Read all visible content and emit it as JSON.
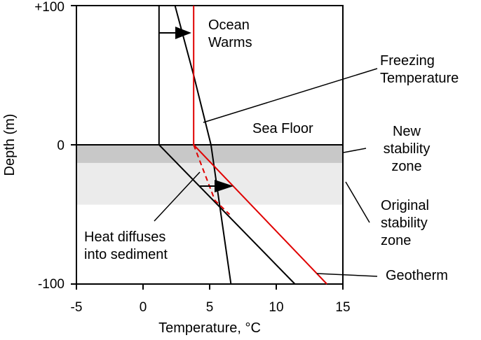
{
  "axes": {
    "xlabel": "Temperature, °C",
    "ylabel": "Depth (m)",
    "xticks": [
      "-5",
      "0",
      "5",
      "10",
      "15"
    ],
    "yticks": [
      "+100",
      "0",
      "-100"
    ]
  },
  "annotations": {
    "ocean_warms": [
      "Ocean",
      "Warms"
    ],
    "freezing": [
      "Freezing",
      "Temperature"
    ],
    "sea_floor": "Sea Floor",
    "new_zone": [
      "New",
      "stability",
      "zone"
    ],
    "original_zone": [
      "Original",
      "stability",
      "zone"
    ],
    "heat": [
      "Heat diffuses",
      "into sediment"
    ],
    "geotherm": "Geotherm"
  },
  "colors": {
    "geotherm_new": "#e00000",
    "new_zone_fill": "#c8c8c8",
    "original_zone_fill": "#ebebeb",
    "lines": "#000000"
  },
  "chart_data": {
    "type": "line",
    "xlim": [
      -5,
      15
    ],
    "ylim": [
      -100,
      100
    ],
    "sea_floor_depth": 0,
    "new_stability_zone_depth": [
      -13,
      0
    ],
    "original_stability_zone_depth": [
      -43,
      0
    ],
    "series": [
      {
        "x": [
          1.2,
          1.2,
          11.4
        ],
        "y": [
          100,
          0,
          -100
        ]
      },
      {
        "x": [
          2.4,
          3.8,
          5.1,
          6.6
        ],
        "y": [
          100,
          50,
          0,
          -100
        ]
      },
      {
        "x": [
          3.8,
          3.8,
          13.8
        ],
        "y": [
          100,
          0,
          -100
        ]
      },
      {
        "x": [
          3.8,
          4.6,
          5.4,
          6.5
        ],
        "y": [
          0,
          -20,
          -40,
          -50
        ]
      }
    ]
  }
}
